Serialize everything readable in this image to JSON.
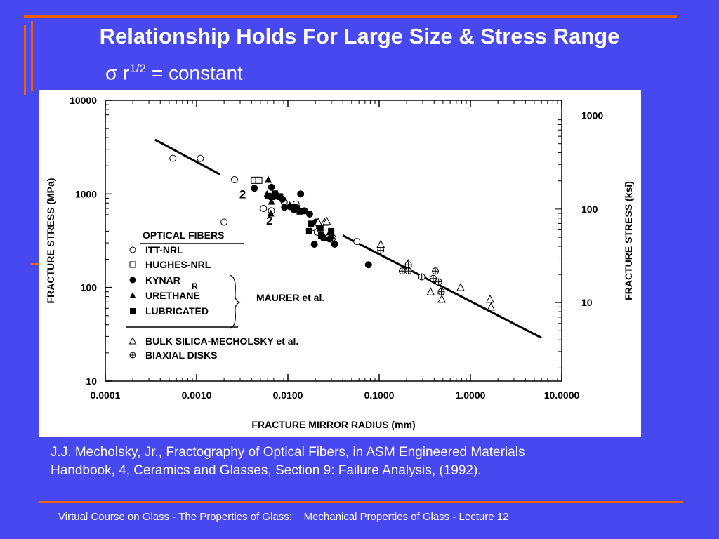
{
  "slide": {
    "title": "Relationship Holds For Large Size & Stress Range",
    "formula": {
      "symbol": "σ",
      "base": "r",
      "exponent": "1/2",
      "rest": "= constant"
    },
    "citation_line1": "J.J. Mecholsky, Jr., Fractography of Optical Fibers, in ASM Engineered Materials",
    "citation_line2": "Handbook, 4, Ceramics and Glasses, Section 9:  Failure Analysis, (1992).",
    "footer": "Virtual Course on Glass - The Properties of Glass:    Mechanical Properties of Glass - Lecture 12",
    "accent_color": "#f06000",
    "background_color": "#4848f0"
  },
  "chart_data": {
    "type": "scatter",
    "xscale": "log",
    "yscale": "log",
    "xlim": [
      0.0001,
      10
    ],
    "ylim": [
      10,
      10000
    ],
    "xlabel": "FRACTURE MIRROR RADIUS (mm)",
    "ylabel": "FRACTURE STRESS (MPa)",
    "y2label": "FRACTURE STRESS (ksi)",
    "xticks": [
      {
        "value": 0.0001,
        "label": "0.0001"
      },
      {
        "value": 0.001,
        "label": "0.0010"
      },
      {
        "value": 0.01,
        "label": "0.0100"
      },
      {
        "value": 0.1,
        "label": "0.1000"
      },
      {
        "value": 1,
        "label": "1.0000"
      },
      {
        "value": 10,
        "label": "10.0000"
      }
    ],
    "yticks": [
      {
        "value": 10,
        "label": "10"
      },
      {
        "value": 100,
        "label": "100"
      },
      {
        "value": 1000,
        "label": "1000"
      },
      {
        "value": 10000,
        "label": "10000"
      }
    ],
    "y2ticks": [
      {
        "value": 10,
        "label": "10"
      },
      {
        "value": 100,
        "label": "100"
      },
      {
        "value": 1000,
        "label": "1000"
      }
    ],
    "legend_heading": "OPTICAL FIBERS",
    "legend_group_label": "MAURER et al.",
    "legend_superscript": "R",
    "legend": [
      {
        "marker": "open-circle",
        "label": "ITT-NRL"
      },
      {
        "marker": "open-square",
        "label": "HUGHES-NRL"
      },
      {
        "marker": "filled-circle",
        "label": "KYNAR"
      },
      {
        "marker": "filled-triangle",
        "label": "URETHANE"
      },
      {
        "marker": "filled-square",
        "label": "LUBRICATED"
      },
      {
        "marker": "open-triangle",
        "label": "BULK SILICA-MECHOLSKY et al."
      },
      {
        "marker": "open-cross-circle",
        "label": "BIAXIAL DISKS"
      }
    ],
    "annotations": [
      {
        "text": "2",
        "x": 0.0032,
        "y": 900
      },
      {
        "text": "2",
        "x": 0.0063,
        "y": 470
      }
    ],
    "fit_lines": [
      {
        "points": [
          [
            0.00035,
            3800
          ],
          [
            0.0018,
            1620
          ]
        ]
      },
      {
        "points": [
          [
            0.04,
            360
          ],
          [
            6,
            29
          ]
        ]
      }
    ],
    "series": [
      {
        "marker": "open-circle",
        "points": [
          [
            0.00055,
            2400
          ],
          [
            0.0011,
            2400
          ],
          [
            0.0026,
            1420
          ],
          [
            0.002,
            500
          ],
          [
            0.0054,
            700
          ],
          [
            0.0066,
            660
          ],
          [
            0.0091,
            820
          ],
          [
            0.0123,
            780
          ],
          [
            0.019,
            440
          ],
          [
            0.021,
            390
          ],
          [
            0.031,
            340
          ],
          [
            0.057,
            310
          ]
        ]
      },
      {
        "marker": "open-square",
        "points": [
          [
            0.0043,
            1400
          ],
          [
            0.0048,
            1400
          ]
        ]
      },
      {
        "marker": "filled-circle",
        "points": [
          [
            0.0043,
            1150
          ],
          [
            0.0066,
            1180
          ],
          [
            0.0075,
            950
          ],
          [
            0.0087,
            880
          ],
          [
            0.0092,
            720
          ],
          [
            0.0138,
            1000
          ],
          [
            0.0106,
            730
          ],
          [
            0.0117,
            680
          ],
          [
            0.0152,
            660
          ],
          [
            0.0173,
            610
          ],
          [
            0.0195,
            290
          ],
          [
            0.0203,
            500
          ],
          [
            0.0245,
            340
          ],
          [
            0.0287,
            330
          ],
          [
            0.0325,
            290
          ],
          [
            0.0764,
            175
          ]
        ]
      },
      {
        "marker": "filled-triangle",
        "points": [
          [
            0.0061,
            1420
          ],
          [
            0.0059,
            1000
          ],
          [
            0.0067,
            930
          ],
          [
            0.0066,
            830
          ],
          [
            0.0065,
            620
          ],
          [
            0.0083,
            930
          ],
          [
            0.0105,
            760
          ],
          [
            0.0118,
            690
          ],
          [
            0.0252,
            340
          ],
          [
            0.0303,
            360
          ],
          [
            0.0287,
            390
          ]
        ]
      },
      {
        "marker": "filled-square",
        "points": [
          [
            0.0061,
            950
          ],
          [
            0.0072,
            1010
          ],
          [
            0.0073,
            960
          ],
          [
            0.0082,
            940
          ],
          [
            0.0118,
            720
          ],
          [
            0.0125,
            700
          ],
          [
            0.0135,
            650
          ],
          [
            0.0171,
            400
          ],
          [
            0.0178,
            480
          ],
          [
            0.0227,
            430
          ],
          [
            0.0232,
            360
          ],
          [
            0.0298,
            400
          ]
        ]
      },
      {
        "marker": "open-triangle",
        "points": [
          [
            0.0215,
            500
          ],
          [
            0.0252,
            500
          ],
          [
            0.0267,
            510
          ],
          [
            0.104,
            290
          ],
          [
            0.208,
            180
          ],
          [
            0.366,
            90
          ],
          [
            0.468,
            90
          ],
          [
            0.485,
            75
          ],
          [
            0.78,
            100
          ],
          [
            1.64,
            75
          ],
          [
            1.68,
            62
          ]
        ]
      },
      {
        "marker": "open-cross-circle",
        "points": [
          [
            0.104,
            250
          ],
          [
            0.179,
            150
          ],
          [
            0.209,
            175
          ],
          [
            0.209,
            150
          ],
          [
            0.293,
            130
          ],
          [
            0.391,
            125
          ],
          [
            0.413,
            150
          ],
          [
            0.448,
            115
          ],
          [
            0.48,
            90
          ]
        ]
      }
    ]
  }
}
